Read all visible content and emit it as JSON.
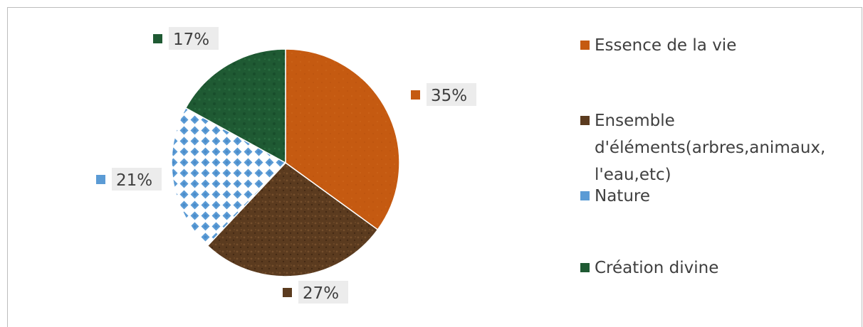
{
  "chart_data": {
    "type": "pie",
    "title": "",
    "slices": [
      {
        "label": "Essence de la vie",
        "value": 35,
        "display": "35%",
        "color": "#c55a11",
        "pattern": "orange-texture"
      },
      {
        "label": "Ensemble d'éléments(arbres,animaux, l'eau,etc)",
        "value": 27,
        "display": "27%",
        "color": "#5b3b1f",
        "pattern": "brown-texture"
      },
      {
        "label": "Nature",
        "value": 21,
        "display": "21%",
        "color": "#5b9bd5",
        "pattern": "blue-diamond-pattern"
      },
      {
        "label": "Création divine",
        "value": 17,
        "display": "17%",
        "color": "#1f5a33",
        "pattern": "green-marble-texture"
      }
    ],
    "legend_position": "right"
  },
  "legend": {
    "items": [
      {
        "label": "Essence de la vie"
      },
      {
        "label": "Ensemble\nd'éléments(arbres,animaux,\nl'eau,etc)"
      },
      {
        "label": "Nature"
      },
      {
        "label": "Création divine"
      }
    ]
  }
}
